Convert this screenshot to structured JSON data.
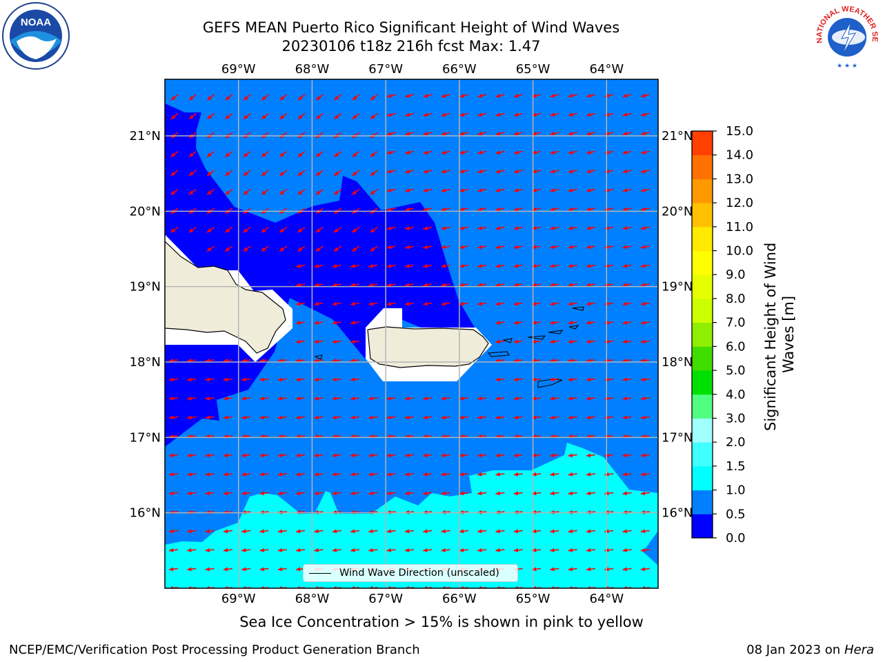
{
  "header": {
    "title_line1": "GEFS MEAN Puerto Rico Significant Height of Wind Waves",
    "title_line2": "20230106 t18z 216h fcst   Max: 1.47"
  },
  "logos": {
    "left": {
      "icon": "noaa-logo",
      "text": "NOAA"
    },
    "right": {
      "icon": "nws-logo",
      "text": "NATIONAL WEATHER SERVICE"
    }
  },
  "map": {
    "lon_labels": [
      "69°W",
      "68°W",
      "67°W",
      "66°W",
      "65°W",
      "64°W"
    ],
    "lat_labels": [
      "21°N",
      "20°N",
      "19°N",
      "18°N",
      "17°N",
      "16°N"
    ],
    "extent": {
      "lon_min": -70.0,
      "lon_max": -63.3,
      "lat_min": 15.0,
      "lat_max": 21.75
    },
    "legend_label": "Wind Wave Direction (unscaled)",
    "arrow_color": "#ff0000",
    "land_color": "#efedda",
    "fill_colors": {
      "under_0_5": "#0000ff",
      "0_5_to_1_0": "#0080ff",
      "1_0_to_1_5": "#00ffff"
    }
  },
  "colorbar": {
    "label": "Significant Height of Wind Waves [m]",
    "ticks": [
      "15.0",
      "14.0",
      "13.0",
      "12.0",
      "11.0",
      "10.0",
      "9.0",
      "8.0",
      "7.0",
      "6.0",
      "5.0",
      "4.0",
      "3.0",
      "2.0",
      "1.5",
      "1.0",
      "0.5",
      "0.0"
    ],
    "colors": [
      "#0000ff",
      "#0080ff",
      "#00ffff",
      "#40ffff",
      "#a0ffff",
      "#50ff80",
      "#00e000",
      "#40dd00",
      "#90ee00",
      "#ccff00",
      "#e6ff00",
      "#ffff00",
      "#ffea00",
      "#ffc000",
      "#ff9900",
      "#ff7000",
      "#ff4000",
      "#ff1000"
    ]
  },
  "caption": "Sea Ice Concentration > 15% is shown in pink to yellow",
  "footer": {
    "left": "NCEP/EMC/Verification Post Processing Product Generation Branch",
    "right_prefix": "08 Jan 2023 on ",
    "right_machine": "Hera"
  }
}
